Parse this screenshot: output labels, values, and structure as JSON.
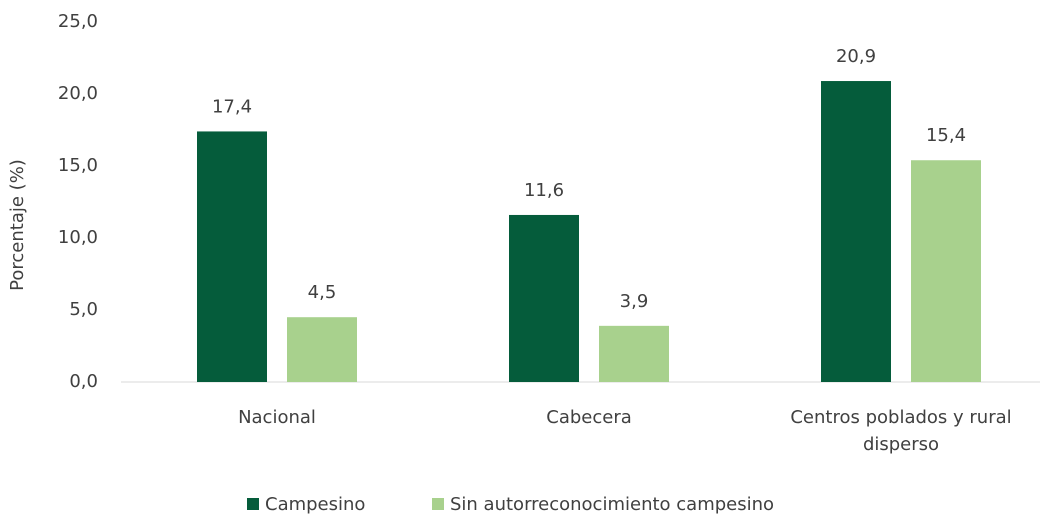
{
  "chart_data": {
    "type": "bar",
    "y_label": "Porcentaje (%)",
    "categories": [
      "Nacional",
      "Cabecera",
      "Centros poblados y rural disperso"
    ],
    "series": [
      {
        "name": "Campesino",
        "color": "#055c3b",
        "values": [
          17.4,
          11.6,
          20.9
        ],
        "value_labels": [
          "17,4",
          "11,6",
          "20,9"
        ]
      },
      {
        "name": "Sin autorreconocimiento campesino",
        "color": "#a8d18d",
        "values": [
          4.5,
          3.9,
          15.4
        ],
        "value_labels": [
          "4,5",
          "3,9",
          "15,4"
        ]
      }
    ],
    "ylim": [
      0,
      25
    ],
    "yticks": [
      {
        "value": 0,
        "label": "0,0"
      },
      {
        "value": 5,
        "label": "5,0"
      },
      {
        "value": 10,
        "label": "10,0"
      },
      {
        "value": 15,
        "label": "15,0"
      },
      {
        "value": 20,
        "label": "20,0"
      },
      {
        "value": 25,
        "label": "25,0"
      }
    ],
    "grid": false,
    "legend": "bottom"
  }
}
